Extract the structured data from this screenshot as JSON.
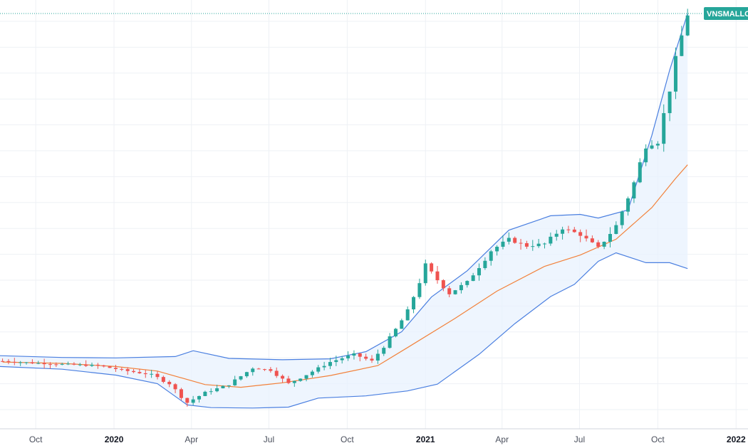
{
  "symbol": {
    "label": "VNSMALLC",
    "color": "#26a69a"
  },
  "colors": {
    "up": "#26a69a",
    "down": "#ef5350",
    "basis": "#f2813a",
    "band": "#4a7fe0",
    "band_fill": "#e8f2fd",
    "grid": "#eef1f5",
    "price_line": "#26a69a"
  },
  "chart_data": {
    "type": "candlestick",
    "title": "",
    "interval": "weekly",
    "indicator": "Bollinger Bands",
    "x_ticks": [
      {
        "label": "Oct",
        "date": "2019-10-01",
        "bold": false
      },
      {
        "label": "2020",
        "date": "2020-01-01",
        "bold": true
      },
      {
        "label": "Apr",
        "date": "2020-04-01",
        "bold": false
      },
      {
        "label": "Jul",
        "date": "2020-07-01",
        "bold": false
      },
      {
        "label": "Oct",
        "date": "2020-10-01",
        "bold": false
      },
      {
        "label": "2021",
        "date": "2021-01-01",
        "bold": true
      },
      {
        "label": "Apr",
        "date": "2021-04-01",
        "bold": false
      },
      {
        "label": "Jul",
        "date": "2021-07-01",
        "bold": false
      },
      {
        "label": "Oct",
        "date": "2021-10-01",
        "bold": false
      },
      {
        "label": "2022",
        "date": "2022-01-01",
        "bold": true
      }
    ],
    "x_range": [
      "2019-08-20",
      "2022-01-15"
    ],
    "y_range": [
      420,
      1370
    ],
    "last_price": 1340,
    "close_series": [
      {
        "date": "2019-08-23",
        "close": 570
      },
      {
        "date": "2019-09-27",
        "close": 566
      },
      {
        "date": "2019-11-01",
        "close": 563
      },
      {
        "date": "2019-12-13",
        "close": 560
      },
      {
        "date": "2020-01-17",
        "close": 548
      },
      {
        "date": "2020-02-14",
        "close": 540
      },
      {
        "date": "2020-03-06",
        "close": 520
      },
      {
        "date": "2020-03-27",
        "close": 478
      },
      {
        "date": "2020-04-17",
        "close": 500
      },
      {
        "date": "2020-05-15",
        "close": 518
      },
      {
        "date": "2020-06-12",
        "close": 555
      },
      {
        "date": "2020-07-03",
        "close": 550
      },
      {
        "date": "2020-07-24",
        "close": 520
      },
      {
        "date": "2020-08-14",
        "close": 540
      },
      {
        "date": "2020-09-11",
        "close": 568
      },
      {
        "date": "2020-10-09",
        "close": 585
      },
      {
        "date": "2020-10-30",
        "close": 570
      },
      {
        "date": "2020-11-20",
        "close": 620
      },
      {
        "date": "2020-12-11",
        "close": 680
      },
      {
        "date": "2021-01-01",
        "close": 780
      },
      {
        "date": "2021-01-29",
        "close": 720
      },
      {
        "date": "2021-02-19",
        "close": 745
      },
      {
        "date": "2021-03-19",
        "close": 815
      },
      {
        "date": "2021-04-09",
        "close": 840
      },
      {
        "date": "2021-04-30",
        "close": 825
      },
      {
        "date": "2021-05-21",
        "close": 830
      },
      {
        "date": "2021-06-11",
        "close": 865
      },
      {
        "date": "2021-07-02",
        "close": 850
      },
      {
        "date": "2021-07-23",
        "close": 820
      },
      {
        "date": "2021-08-13",
        "close": 870
      },
      {
        "date": "2021-09-03",
        "close": 965
      },
      {
        "date": "2021-09-17",
        "close": 1050
      },
      {
        "date": "2021-10-01",
        "close": 1055
      },
      {
        "date": "2021-10-15",
        "close": 1175
      },
      {
        "date": "2021-10-29",
        "close": 1290
      },
      {
        "date": "2021-11-05",
        "close": 1340
      }
    ],
    "bollinger": {
      "basis": [
        {
          "date": "2019-08-23",
          "value": 568
        },
        {
          "date": "2019-11-01",
          "value": 565
        },
        {
          "date": "2020-01-03",
          "value": 558
        },
        {
          "date": "2020-02-21",
          "value": 548
        },
        {
          "date": "2020-04-17",
          "value": 518
        },
        {
          "date": "2020-05-29",
          "value": 512
        },
        {
          "date": "2020-07-17",
          "value": 522
        },
        {
          "date": "2020-09-11",
          "value": 538
        },
        {
          "date": "2020-11-06",
          "value": 560
        },
        {
          "date": "2020-12-11",
          "value": 600
        },
        {
          "date": "2021-02-05",
          "value": 665
        },
        {
          "date": "2021-03-26",
          "value": 725
        },
        {
          "date": "2021-05-21",
          "value": 780
        },
        {
          "date": "2021-07-02",
          "value": 805
        },
        {
          "date": "2021-08-13",
          "value": 840
        },
        {
          "date": "2021-09-24",
          "value": 910
        },
        {
          "date": "2021-10-22",
          "value": 975
        },
        {
          "date": "2021-11-05",
          "value": 1005
        }
      ],
      "upper": [
        {
          "date": "2019-08-20",
          "value": 582
        },
        {
          "date": "2019-11-01",
          "value": 578
        },
        {
          "date": "2020-01-03",
          "value": 577
        },
        {
          "date": "2020-03-13",
          "value": 580
        },
        {
          "date": "2020-04-03",
          "value": 593
        },
        {
          "date": "2020-05-15",
          "value": 576
        },
        {
          "date": "2020-07-17",
          "value": 573
        },
        {
          "date": "2020-09-11",
          "value": 575
        },
        {
          "date": "2020-10-23",
          "value": 591
        },
        {
          "date": "2020-12-04",
          "value": 635
        },
        {
          "date": "2021-01-08",
          "value": 712
        },
        {
          "date": "2021-02-19",
          "value": 770
        },
        {
          "date": "2021-04-09",
          "value": 860
        },
        {
          "date": "2021-05-28",
          "value": 892
        },
        {
          "date": "2021-07-02",
          "value": 895
        },
        {
          "date": "2021-07-23",
          "value": 887
        },
        {
          "date": "2021-08-27",
          "value": 905
        },
        {
          "date": "2021-09-24",
          "value": 1070
        },
        {
          "date": "2021-10-15",
          "value": 1215
        },
        {
          "date": "2021-11-05",
          "value": 1340
        }
      ],
      "lower": [
        {
          "date": "2019-08-20",
          "value": 558
        },
        {
          "date": "2019-11-01",
          "value": 552
        },
        {
          "date": "2020-01-03",
          "value": 539
        },
        {
          "date": "2020-02-21",
          "value": 520
        },
        {
          "date": "2020-03-27",
          "value": 473
        },
        {
          "date": "2020-04-24",
          "value": 467
        },
        {
          "date": "2020-06-12",
          "value": 466
        },
        {
          "date": "2020-07-24",
          "value": 468
        },
        {
          "date": "2020-08-28",
          "value": 488
        },
        {
          "date": "2020-10-23",
          "value": 493
        },
        {
          "date": "2020-12-11",
          "value": 504
        },
        {
          "date": "2021-01-15",
          "value": 519
        },
        {
          "date": "2021-03-05",
          "value": 585
        },
        {
          "date": "2021-04-16",
          "value": 653
        },
        {
          "date": "2021-05-28",
          "value": 713
        },
        {
          "date": "2021-06-25",
          "value": 740
        },
        {
          "date": "2021-07-23",
          "value": 791
        },
        {
          "date": "2021-08-13",
          "value": 810
        },
        {
          "date": "2021-09-17",
          "value": 788
        },
        {
          "date": "2021-10-15",
          "value": 788
        },
        {
          "date": "2021-11-05",
          "value": 775
        }
      ]
    }
  }
}
